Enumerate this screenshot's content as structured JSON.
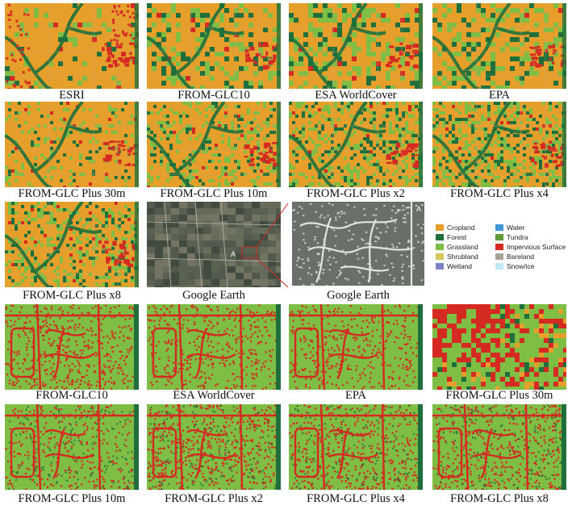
{
  "colors": {
    "cropland": "#e69f2a",
    "forest": "#1f6f3c",
    "grassland": "#7fbe45",
    "shrubland": "#d3c85a",
    "wetland": "#7d82c4",
    "water": "#3f97d6",
    "tundra": "#5f9a3c",
    "impervious": "#d42a22",
    "bareland": "#a6a39b",
    "snow": "#bfe6f5",
    "satellite": "#4c5448",
    "satellite_zoom": "#69706a",
    "road": "#e2e4de",
    "guide": "#d12a26"
  },
  "rows": [
    {
      "panels": [
        {
          "label": "ESRI",
          "kind": "overview",
          "variant": 0
        },
        {
          "label": "FROM-GLC10",
          "kind": "overview",
          "variant": 1
        },
        {
          "label": "ESA WorldCover",
          "kind": "overview",
          "variant": 2
        },
        {
          "label": "EPA",
          "kind": "overview",
          "variant": 3
        }
      ]
    },
    {
      "panels": [
        {
          "label": "FROM-GLC Plus 30m",
          "kind": "overview",
          "variant": 4
        },
        {
          "label": "FROM-GLC Plus 10m",
          "kind": "overview",
          "variant": 5
        },
        {
          "label": "FROM-GLC Plus x2",
          "kind": "overview",
          "variant": 6
        },
        {
          "label": "FROM-GLC Plus x4",
          "kind": "overview",
          "variant": 7
        }
      ]
    },
    {
      "panels": [
        {
          "label": "FROM-GLC Plus x8",
          "kind": "overview",
          "variant": 8
        },
        {
          "label": "Google Earth",
          "kind": "satellite",
          "variant": 0,
          "mark": "A"
        },
        {
          "label": "Google Earth",
          "kind": "satellite-zoom",
          "variant": 1,
          "mark": "A"
        }
      ]
    },
    {
      "panels": [
        {
          "label": "FROM-GLC10",
          "kind": "urban",
          "variant": 0
        },
        {
          "label": "ESA WorldCover",
          "kind": "urban",
          "variant": 1
        },
        {
          "label": "EPA",
          "kind": "urban",
          "variant": 2
        },
        {
          "label": "FROM-GLC Plus 30m",
          "kind": "urban-coarse",
          "variant": 3
        }
      ]
    },
    {
      "panels": [
        {
          "label": "FROM-GLC Plus 10m",
          "kind": "urban",
          "variant": 4
        },
        {
          "label": "FROM-GLC Plus x2",
          "kind": "urban",
          "variant": 5
        },
        {
          "label": "FROM-GLC Plus x4",
          "kind": "urban",
          "variant": 6
        },
        {
          "label": "FROM-GLC Plus x8",
          "kind": "urban",
          "variant": 7
        }
      ]
    }
  ],
  "legend": {
    "col1": [
      {
        "label": "Cropland",
        "color": "#e69f2a"
      },
      {
        "label": "Forest",
        "color": "#1f6f3c"
      },
      {
        "label": "Grassland",
        "color": "#7fbe45"
      },
      {
        "label": "Shrubland",
        "color": "#d3c85a"
      },
      {
        "label": "Wetland",
        "color": "#7d82c4"
      }
    ],
    "col2": [
      {
        "label": "Water",
        "color": "#3f97d6"
      },
      {
        "label": "Tundra",
        "color": "#5f9a3c"
      },
      {
        "label": "Impervious Surface",
        "color": "#d42a22"
      },
      {
        "label": "Bareland",
        "color": "#a6a39b"
      },
      {
        "label": "Snow/ice",
        "color": "#bfe6f5"
      }
    ]
  }
}
